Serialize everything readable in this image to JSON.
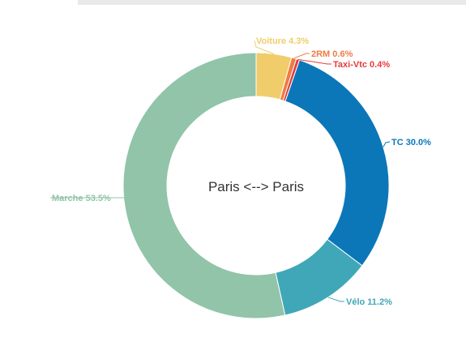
{
  "chart_data": {
    "type": "pie",
    "variant": "donut",
    "center_label": "Paris <--> Paris",
    "slices": [
      {
        "name": "Voiture",
        "value": 4.3,
        "label": "Voiture 4.3%",
        "color": "#f0cd6a"
      },
      {
        "name": "2RM",
        "value": 0.6,
        "label": "2RM 0.6%",
        "color": "#ef7b45"
      },
      {
        "name": "Taxi-Vtc",
        "value": 0.4,
        "label": "Taxi-Vtc 0.4%",
        "color": "#e53c3c"
      },
      {
        "name": "TC",
        "value": 30.0,
        "label": "TC 30.0%",
        "color": "#0b77b8"
      },
      {
        "name": "Vélo",
        "value": 11.2,
        "label": "Vélo 11.2%",
        "color": "#3fa7b8"
      },
      {
        "name": "Marche",
        "value": 53.5,
        "label": "Marche 53.5%",
        "color": "#91c4a8"
      }
    ]
  }
}
